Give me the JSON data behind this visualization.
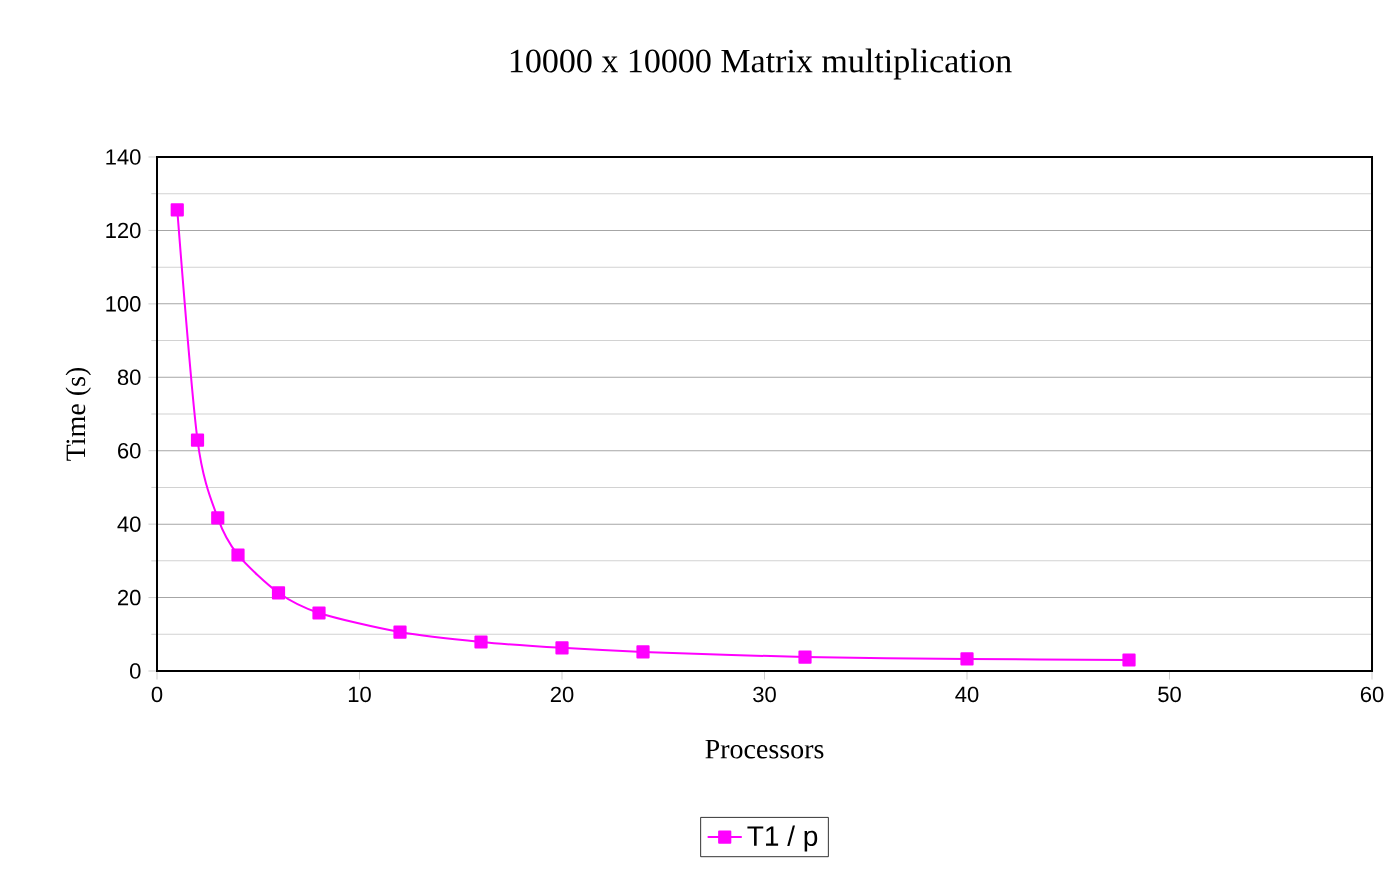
{
  "chart_data": {
    "type": "line",
    "title": "10000 x 10000 Matrix multiplication",
    "xlabel": "Processors",
    "ylabel": "Time (s)",
    "x": [
      1,
      2,
      3,
      4,
      6,
      8,
      12,
      16,
      20,
      24,
      32,
      40,
      48
    ],
    "series": [
      {
        "name": "T1 / p",
        "color": "#ff00ff",
        "values": [
          125.6,
          62.9,
          41.7,
          31.6,
          21.3,
          15.8,
          10.6,
          7.9,
          6.3,
          5.2,
          3.8,
          3.3,
          3.0
        ]
      }
    ],
    "xlim": [
      0,
      60
    ],
    "xticks": [
      0,
      10,
      20,
      30,
      40,
      50,
      60
    ],
    "ylim": [
      0,
      140
    ],
    "yticks": [
      0,
      20,
      40,
      60,
      80,
      100,
      120,
      140
    ],
    "grid": "y",
    "legend": "bottom",
    "marker": "square",
    "line_style": "solid"
  }
}
